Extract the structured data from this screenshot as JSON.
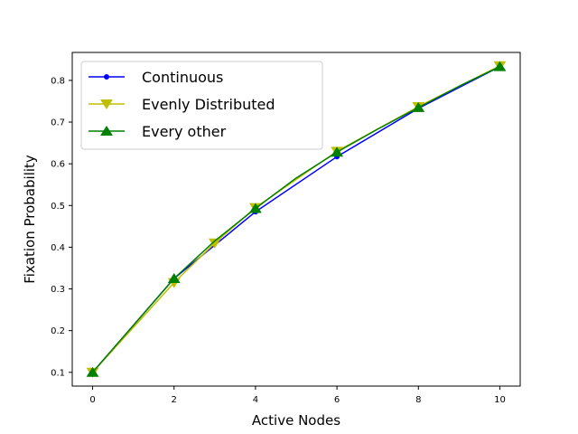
{
  "chart_data": {
    "type": "line",
    "title": "",
    "xlabel": "Active Nodes",
    "ylabel": "Fixation Probability",
    "xlim": [
      -0.5,
      10.5
    ],
    "ylim": [
      0.067,
      0.867
    ],
    "xticks": [
      0,
      2,
      4,
      6,
      8,
      10
    ],
    "yticks": [
      0.1,
      0.2,
      0.3,
      0.4,
      0.5,
      0.6,
      0.7,
      0.8
    ],
    "xtick_labels": [
      "0",
      "2",
      "4",
      "6",
      "8",
      "10"
    ],
    "ytick_labels": [
      "0.1",
      "0.2",
      "0.3",
      "0.4",
      "0.5",
      "0.6",
      "0.7",
      "0.8"
    ],
    "grid": false,
    "legend_position": "upper-left",
    "series": [
      {
        "name": "Continuous",
        "color": "#0000ff",
        "marker": "circle",
        "x": [
          0,
          2,
          4,
          6,
          8,
          10
        ],
        "y": [
          0.1,
          0.325,
          0.485,
          0.617,
          0.733,
          0.833
        ]
      },
      {
        "name": "Evenly Distributed",
        "color": "#bfbf00",
        "marker": "triangle-down",
        "x": [
          0,
          2,
          3,
          4,
          6,
          8,
          10
        ],
        "y": [
          0.1,
          0.315,
          0.41,
          0.495,
          0.63,
          0.737,
          0.835
        ]
      },
      {
        "name": "Every other",
        "color": "#008000",
        "marker": "triangle-up",
        "marker_x": [
          0,
          2,
          4,
          6,
          8,
          10
        ],
        "x": [
          0,
          2,
          3,
          4,
          5,
          6,
          7,
          8,
          9,
          10
        ],
        "y": [
          0.1,
          0.325,
          0.415,
          0.493,
          0.566,
          0.628,
          0.683,
          0.735,
          0.786,
          0.833
        ]
      }
    ]
  }
}
